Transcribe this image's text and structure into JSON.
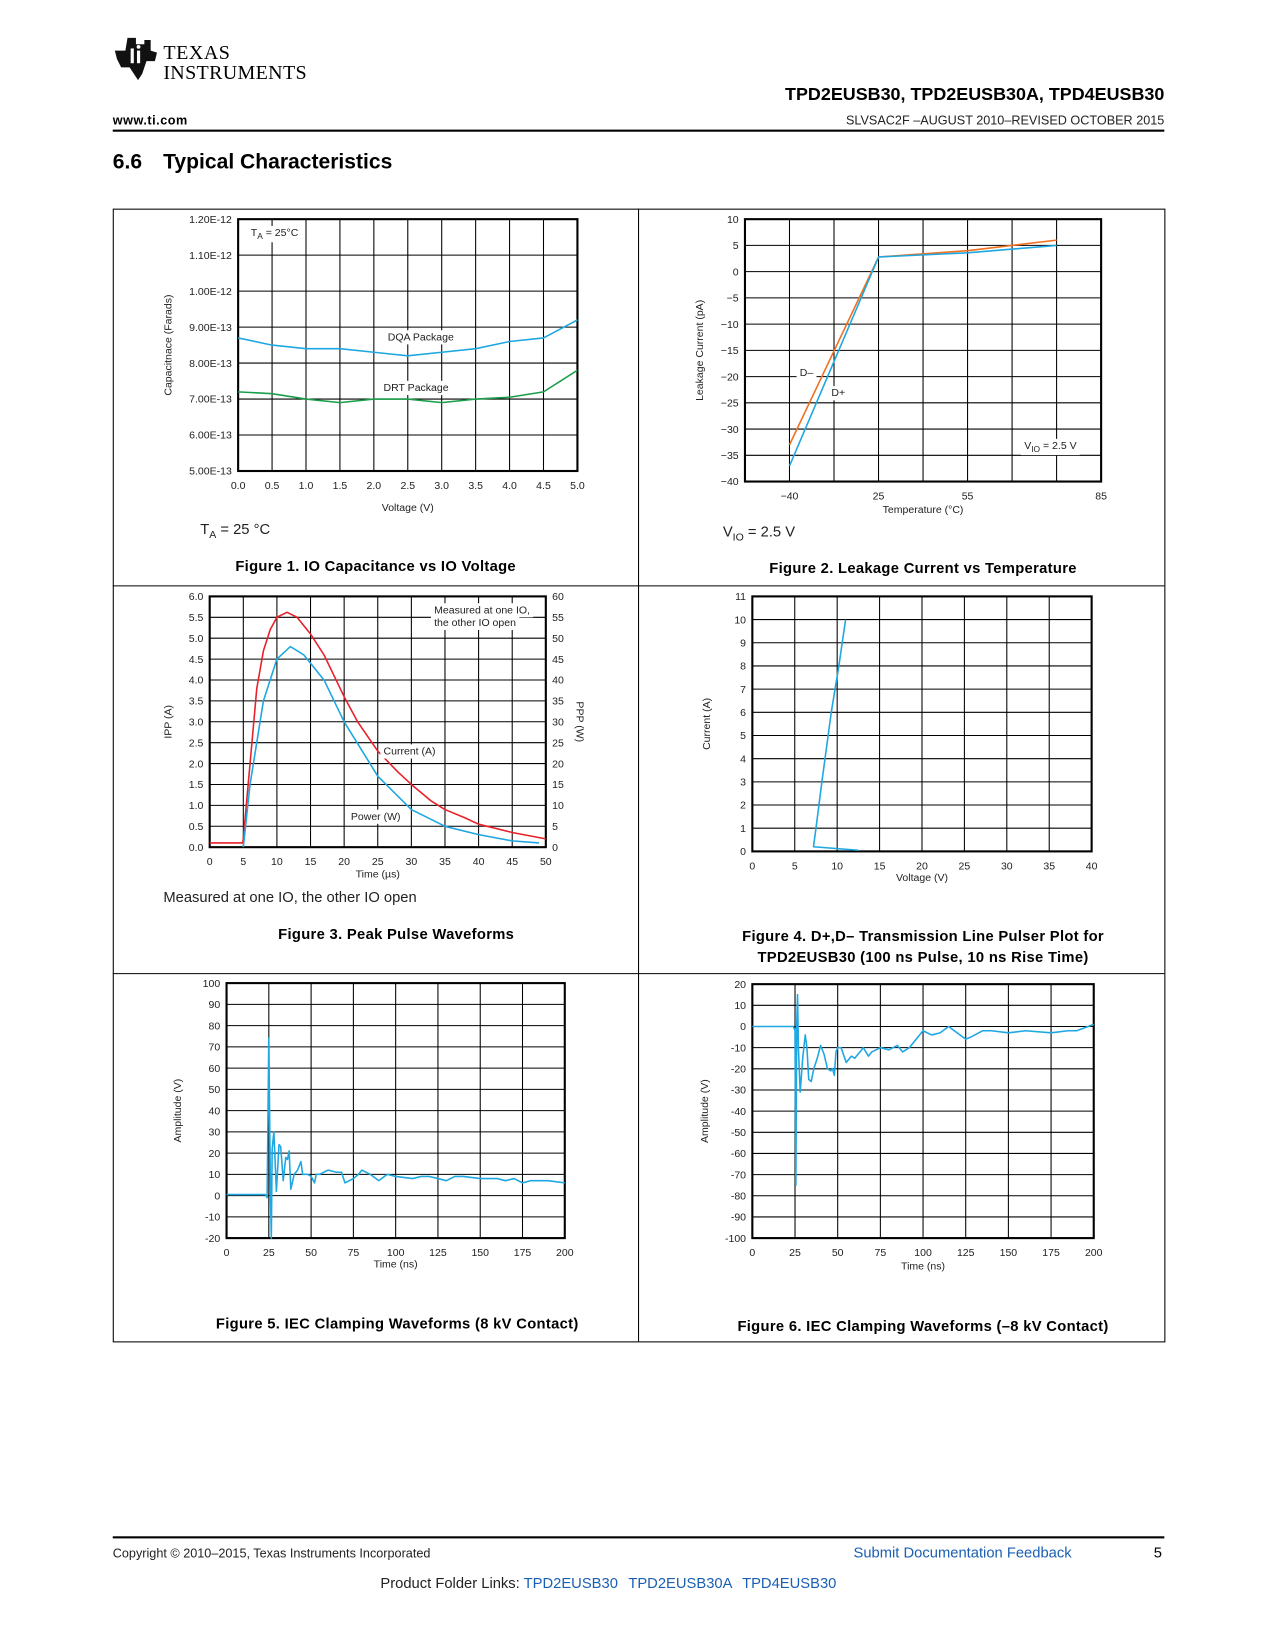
{
  "header": {
    "logo_line1": "TEXAS",
    "logo_line2": "INSTRUMENTS",
    "doc_title": "TPD2EUSB30, TPD2EUSB30A, TPD4EUSB30",
    "website": "www.ti.com",
    "doc_number": "SLVSAC2F –AUGUST 2010–REVISED OCTOBER 2015"
  },
  "section": {
    "number": "6.6",
    "title": "Typical Characteristics"
  },
  "notes": {
    "fig1": {
      "main": "T",
      "sub": "A",
      "rest": " = 25 °C"
    },
    "fig2": {
      "main": "V",
      "sub": "IO",
      "rest": " = 2.5 V"
    },
    "fig3": "Measured at one IO, the other IO open"
  },
  "captions": {
    "fig1": "Figure 1. IO Capacitance vs IO Voltage",
    "fig2": "Figure 2. Leakage Current vs Temperature",
    "fig3": "Figure 3. Peak Pulse Waveforms",
    "fig4_line1": "Figure 4. D+,D– Transmission Line Pulser Plot for",
    "fig4_line2": "TPD2EUSB30 (100 ns Pulse, 10 ns Rise Time)",
    "fig5": "Figure 5. IEC Clamping Waveforms (8 kV Contact)",
    "fig6": "Figure 6. IEC Clamping Waveforms (–8 kV Contact)"
  },
  "footer": {
    "copyright": "Copyright © 2010–2015, Texas Instruments Incorporated",
    "feedback_link": "Submit Documentation Feedback",
    "page_number": "5",
    "folder_label": "Product Folder Links:",
    "folder_links": [
      "TPD2EUSB30",
      "TPD2EUSB30A",
      "TPD4EUSB30"
    ]
  },
  "colors": {
    "blue": "#1ea7e1",
    "green": "#1a9e4a",
    "orange": "#f07020",
    "red": "#e8202a",
    "link": "#1a5fb4"
  },
  "chart_data": [
    {
      "type": "line",
      "title": "Figure 1. IO Capacitance vs IO Voltage",
      "xlabel": "Voltage (V)",
      "ylabel": "Capacitnace (Farads)",
      "xlim": [
        0,
        5
      ],
      "ylim": [
        5e-13,
        1.2e-12
      ],
      "grid": true,
      "xticks": [
        "0.0",
        "0.5",
        "1.0",
        "1.5",
        "2.0",
        "2.5",
        "3.0",
        "3.5",
        "4.0",
        "4.5",
        "5.0"
      ],
      "yticks": [
        "5.00E-13",
        "6.00E-13",
        "7.00E-13",
        "8.00E-13",
        "9.00E-13",
        "1.00E-12",
        "1.10E-12",
        "1.20E-12"
      ],
      "annotations": [
        {
          "main": "T",
          "sub": "A",
          "rest": " = 25°C"
        },
        {
          "main": "DQA Package"
        },
        {
          "main": "DRT Package"
        }
      ],
      "series": [
        {
          "name": "DQA Package",
          "color": "#1ea7e1",
          "x": [
            0,
            0.5,
            1,
            1.5,
            2,
            2.5,
            3,
            3.5,
            4,
            4.5,
            5
          ],
          "y": [
            8.7e-13,
            8.5e-13,
            8.4e-13,
            8.4e-13,
            8.3e-13,
            8.2e-13,
            8.3e-13,
            8.4e-13,
            8.6e-13,
            8.7e-13,
            9.2e-13
          ]
        },
        {
          "name": "DRT Package",
          "color": "#1a9e4a",
          "x": [
            0,
            0.5,
            1,
            1.5,
            2,
            2.5,
            3,
            3.5,
            4,
            4.5,
            5
          ],
          "y": [
            7.2e-13,
            7.15e-13,
            7e-13,
            6.9e-13,
            7e-13,
            7e-13,
            6.9e-13,
            7e-13,
            7.05e-13,
            7.2e-13,
            7.8e-13
          ]
        }
      ]
    },
    {
      "type": "line",
      "title": "Figure 2. Leakage Current vs Temperature",
      "xlabel": "Temperature (°C)",
      "ylabel": "Leakage Current (pA)",
      "ylim": [
        -40,
        10
      ],
      "grid": true,
      "xticks": [
        "−40",
        "25",
        "55",
        "85"
      ],
      "yticks": [
        "−40",
        "−35",
        "−30",
        "−25",
        "−20",
        "−15",
        "−10",
        "−5",
        "0",
        "5",
        "10"
      ],
      "annotations": [
        {
          "main": "D–"
        },
        {
          "main": "D+"
        },
        {
          "main": "V",
          "sub": "IO",
          "rest": " = 2.5 V"
        }
      ],
      "series": [
        {
          "name": "D–",
          "color": "#f07020",
          "x": [
            -40,
            25,
            55,
            85
          ],
          "y": [
            -33,
            2.8,
            4,
            6
          ]
        },
        {
          "name": "D+",
          "color": "#1ea7e1",
          "x": [
            -40,
            25,
            55,
            85
          ],
          "y": [
            -37,
            2.8,
            3.6,
            5
          ]
        }
      ]
    },
    {
      "type": "line",
      "title": "Figure 3. Peak Pulse Waveforms",
      "xlabel": "Time (µs)",
      "ylabel": "IPP (A)",
      "y2label": "PPP (W)",
      "xlim": [
        0,
        50
      ],
      "ylim": [
        0,
        6
      ],
      "y2lim": [
        0,
        60
      ],
      "grid": true,
      "xticks": [
        "0",
        "5",
        "10",
        "15",
        "20",
        "25",
        "30",
        "35",
        "40",
        "45",
        "50"
      ],
      "yticks": [
        "0.0",
        "0.5",
        "1.0",
        "1.5",
        "2.0",
        "2.5",
        "3.0",
        "3.5",
        "4.0",
        "4.5",
        "5.0",
        "5.5",
        "6.0"
      ],
      "y2ticks": [
        "0",
        "5",
        "10",
        "15",
        "20",
        "25",
        "30",
        "35",
        "40",
        "45",
        "50",
        "55",
        "60"
      ],
      "annotations": [
        {
          "main": "Measured at one IO,"
        },
        {
          "main": "the other IO open"
        },
        {
          "main": "Current (A)"
        },
        {
          "main": "Power (W)"
        }
      ],
      "series": [
        {
          "name": "Current (A)",
          "color": "#e8202a",
          "axis": "left",
          "x": [
            0,
            4.9,
            5,
            6,
            7,
            8,
            9,
            10,
            11.5,
            13,
            15,
            17,
            20,
            22,
            25,
            28,
            30,
            33,
            35,
            38,
            40,
            45,
            50
          ],
          "y": [
            0.1,
            0.1,
            0.2,
            2,
            3.8,
            4.7,
            5.2,
            5.5,
            5.62,
            5.5,
            5.1,
            4.6,
            3.6,
            3.0,
            2.3,
            1.8,
            1.5,
            1.1,
            0.9,
            0.7,
            0.55,
            0.35,
            0.2
          ]
        },
        {
          "name": "Power (W)",
          "color": "#1ea7e1",
          "axis": "right",
          "x": [
            5,
            6,
            8,
            10,
            12,
            14,
            17,
            20,
            25,
            30,
            35,
            40,
            45,
            49
          ],
          "y": [
            0,
            15,
            35,
            45,
            48,
            46,
            40,
            30,
            17,
            9,
            5,
            3,
            1.5,
            1
          ]
        }
      ]
    },
    {
      "type": "line",
      "title": "Figure 4. D+,D– Transmission Line Pulser Plot for TPD2EUSB30 (100 ns Pulse, 10 ns Rise Time)",
      "xlabel": "Voltage (V)",
      "ylabel": "Current (A)",
      "xlim": [
        0,
        40
      ],
      "ylim": [
        0,
        11
      ],
      "grid": true,
      "xticks": [
        "0",
        "5",
        "10",
        "15",
        "20",
        "25",
        "30",
        "35",
        "40"
      ],
      "yticks": [
        "0",
        "1",
        "2",
        "3",
        "4",
        "5",
        "6",
        "7",
        "8",
        "9",
        "10",
        "11"
      ],
      "annotations": [],
      "series": [
        {
          "color": "#1ea7e1",
          "x": [
            12.5,
            7.2,
            7.5,
            8.2,
            9.3,
            10.2,
            11
          ],
          "y": [
            0.05,
            0.2,
            1,
            3,
            6,
            8,
            10
          ]
        }
      ]
    },
    {
      "type": "line",
      "title": "Figure 5. IEC Clamping Waveforms (8 kV Contact)",
      "xlabel": "Time (ns)",
      "ylabel": "Amplitude (V)",
      "xlim": [
        0,
        200
      ],
      "ylim": [
        -20,
        100
      ],
      "grid": true,
      "xticks": [
        "0",
        "25",
        "50",
        "75",
        "100",
        "125",
        "150",
        "175",
        "200"
      ],
      "yticks": [
        "-20",
        "-10",
        "0",
        "10",
        "20",
        "30",
        "40",
        "50",
        "60",
        "70",
        "80",
        "90",
        "100"
      ],
      "annotations": [],
      "series": [
        {
          "color": "#1ea7e1",
          "x": [
            0,
            10,
            23,
            24,
            25,
            26,
            26.5,
            27,
            28,
            29.5,
            31,
            32,
            33.5,
            35,
            36,
            37,
            38,
            40,
            42,
            44,
            45,
            48,
            50,
            52,
            53,
            55,
            60,
            65,
            68,
            70,
            75,
            78,
            80,
            85,
            90,
            95,
            100,
            110,
            115,
            120,
            125,
            130,
            135,
            140,
            150,
            160,
            165,
            170,
            175,
            180,
            190,
            200
          ],
          "y": [
            0.5,
            0.5,
            0.5,
            -1,
            74,
            0,
            -20,
            22,
            30,
            2,
            24,
            23,
            7,
            18,
            17,
            21,
            3,
            10,
            12,
            16,
            10,
            10,
            9,
            6,
            10,
            10,
            12,
            11,
            11,
            6,
            8,
            10,
            12,
            10,
            7,
            10,
            9,
            8,
            9,
            9,
            8,
            7,
            9,
            9,
            8,
            8,
            7,
            8,
            6,
            7,
            7,
            6
          ]
        }
      ]
    },
    {
      "type": "line",
      "title": "Figure 6. IEC Clamping Waveforms (–8 kV Contact)",
      "xlabel": "Time (ns)",
      "ylabel": "Amplitude (V)",
      "xlim": [
        0,
        200
      ],
      "ylim": [
        -100,
        20
      ],
      "grid": true,
      "xticks": [
        "0",
        "25",
        "50",
        "75",
        "100",
        "125",
        "150",
        "175",
        "200"
      ],
      "yticks": [
        "-100",
        "-90",
        "-80",
        "-70",
        "-60",
        "-50",
        "-40",
        "-30",
        "-20",
        "-10",
        "0",
        "10",
        "20"
      ],
      "annotations": [],
      "series": [
        {
          "color": "#1ea7e1",
          "x": [
            0,
            12,
            24,
            25,
            25.5,
            26,
            26.5,
            27,
            28,
            29.5,
            31,
            32,
            33,
            34.5,
            36,
            38,
            40,
            42,
            44,
            46,
            47,
            48,
            49,
            50,
            52,
            55,
            58,
            60,
            65,
            68,
            70,
            75,
            80,
            85,
            88,
            92,
            95,
            100,
            105,
            110,
            115,
            120,
            125,
            128,
            135,
            140,
            150,
            160,
            175,
            185,
            190,
            200
          ],
          "y": [
            0,
            0,
            0,
            -2,
            -75,
            0,
            15,
            -10,
            -31,
            -15,
            -4,
            -10,
            -25,
            -26,
            -20,
            -15,
            -9,
            -13,
            -20,
            -21,
            -20,
            -23,
            -12,
            -10,
            -10,
            -17,
            -14,
            -15,
            -10,
            -14,
            -12,
            -10,
            -11,
            -9,
            -12,
            -10,
            -7,
            -2,
            -4,
            -3,
            0,
            -3,
            -6,
            -5,
            -2,
            -2,
            -3,
            -2,
            -3,
            -2,
            -2,
            1
          ]
        }
      ]
    }
  ]
}
